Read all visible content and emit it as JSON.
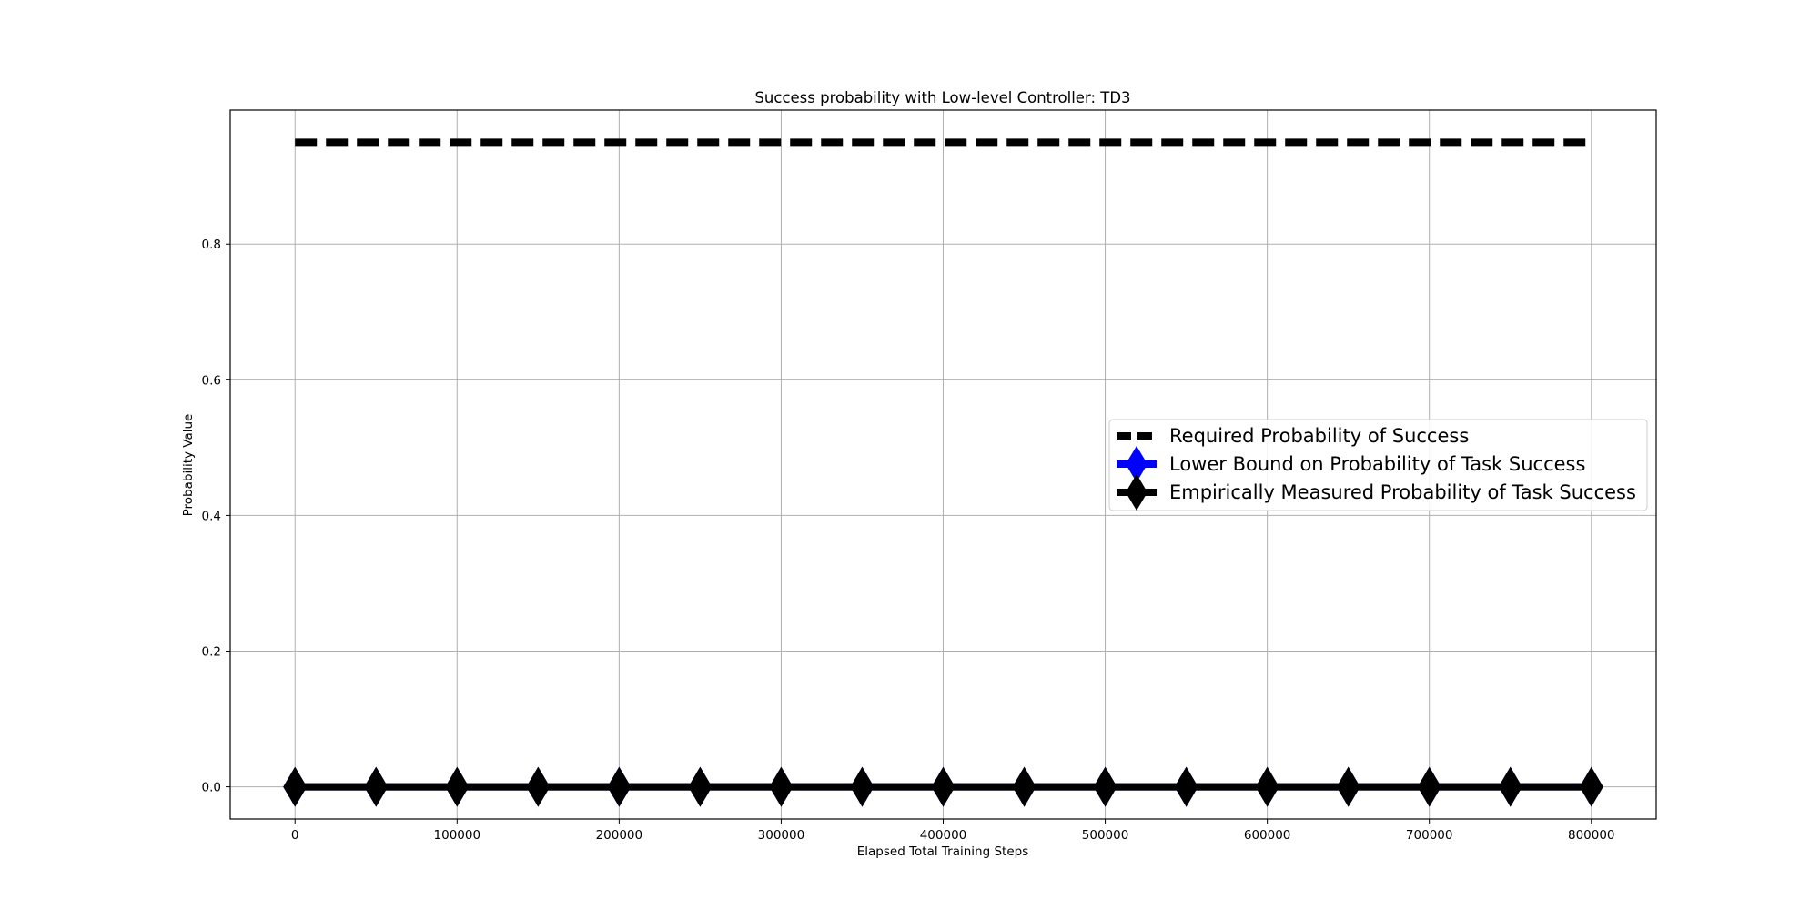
{
  "chart_data": {
    "type": "line",
    "title": "Success probability with Low-level Controller: TD3",
    "xlabel": "Elapsed Total Training Steps",
    "ylabel": "Probability Value",
    "xlim": [
      -40000,
      840000
    ],
    "ylim": [
      -0.0475,
      0.9975
    ],
    "xticks": [
      0,
      100000,
      200000,
      300000,
      400000,
      500000,
      600000,
      700000,
      800000
    ],
    "yticks": [
      0.0,
      0.2,
      0.4,
      0.6,
      0.8
    ],
    "xtick_labels": [
      "0",
      "100000",
      "200000",
      "300000",
      "400000",
      "500000",
      "600000",
      "700000",
      "800000"
    ],
    "ytick_labels": [
      "0.0",
      "0.2",
      "0.4",
      "0.6",
      "0.8"
    ],
    "grid": true,
    "legend_position": "center-right",
    "x": [
      0,
      50000,
      100000,
      150000,
      200000,
      250000,
      300000,
      350000,
      400000,
      450000,
      500000,
      550000,
      600000,
      650000,
      700000,
      750000,
      800000
    ],
    "series": [
      {
        "name": "Required Probability of Success",
        "values": [
          0.95,
          0.95,
          0.95,
          0.95,
          0.95,
          0.95,
          0.95,
          0.95,
          0.95,
          0.95,
          0.95,
          0.95,
          0.95,
          0.95,
          0.95,
          0.95,
          0.95
        ],
        "color": "#000000",
        "linestyle": "dashed",
        "marker": "none"
      },
      {
        "name": "Lower Bound on Probability of Task Success",
        "values": [
          0,
          0,
          0,
          0,
          0,
          0,
          0,
          0,
          0,
          0,
          0,
          0,
          0,
          0,
          0,
          0,
          0
        ],
        "color": "#0000ff",
        "linestyle": "solid",
        "marker": "diamond"
      },
      {
        "name": "Empirically Measured Probability of Task Success",
        "values": [
          0,
          0,
          0,
          0,
          0,
          0,
          0,
          0,
          0,
          0,
          0,
          0,
          0,
          0,
          0,
          0,
          0
        ],
        "color": "#000000",
        "linestyle": "solid",
        "marker": "diamond"
      }
    ]
  }
}
